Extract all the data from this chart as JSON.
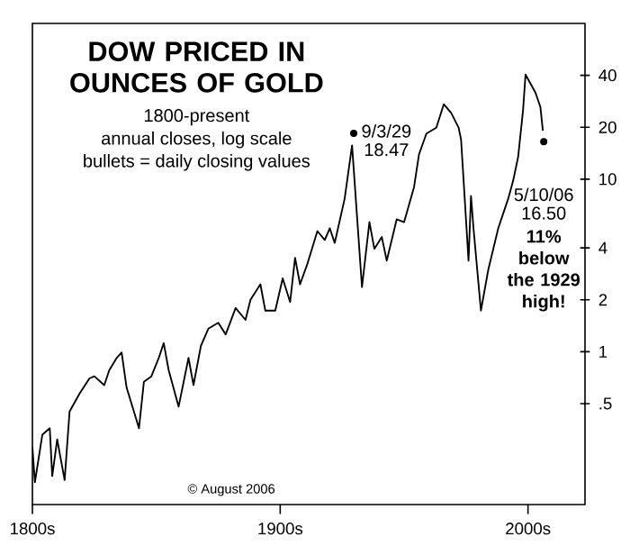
{
  "chart_data": {
    "type": "line",
    "title": "DOW PRICED IN OUNCES OF GOLD",
    "subtitle": "1800-present",
    "annotations": [
      "annual closes, log scale",
      "bullets = daily closing values",
      {
        "text": "9/3/29",
        "x": 1929.67,
        "y": 18.47
      },
      "18.47",
      {
        "text": "5/10/06",
        "x": 2006.36,
        "y": 16.5
      },
      "16.50",
      "11% below the 1929 high!",
      "© August 2006"
    ],
    "xlim": [
      1800,
      2023
    ],
    "xticks": [
      {
        "value": 1800,
        "label": "1800s"
      },
      {
        "value": 1900,
        "label": "1900s"
      },
      {
        "value": 2000,
        "label": "2000s"
      }
    ],
    "ylim": [
      0.13,
      80
    ],
    "yticks": [
      {
        "value": 0.5,
        "label": ".5"
      },
      1,
      2,
      4,
      10,
      20,
      40
    ],
    "log": true,
    "grid": false,
    "series": [
      {
        "color": "#000000",
        "marker": "none",
        "x": [
          1800,
          1801,
          1804,
          1807,
          1808,
          1810,
          1813,
          1815,
          1819,
          1823,
          1825,
          1829,
          1831,
          1834,
          1836,
          1838,
          1843,
          1845,
          1848,
          1851,
          1853,
          1855,
          1859,
          1863,
          1865,
          1868,
          1871,
          1875,
          1878,
          1882,
          1886,
          1888,
          1892,
          1894,
          1898,
          1901,
          1904,
          1906,
          1908,
          1911,
          1915,
          1918,
          1920,
          1922,
          1926,
          1929,
          1933,
          1936,
          1938,
          1941,
          1943,
          1947,
          1950,
          1954,
          1956,
          1959,
          1963,
          1966,
          1969,
          1972,
          1973,
          1976,
          1977,
          1978,
          1981,
          1984,
          1988,
          1992,
          1994,
          1996,
          1998,
          1999,
          2003,
          2005,
          2006
        ],
        "values": [
          0.28,
          0.175,
          0.33,
          0.36,
          0.19,
          0.31,
          0.18,
          0.45,
          0.57,
          0.7,
          0.72,
          0.64,
          0.78,
          0.92,
          0.99,
          0.62,
          0.36,
          0.67,
          0.72,
          0.92,
          1.12,
          0.78,
          0.48,
          0.92,
          0.64,
          1.08,
          1.36,
          1.47,
          1.26,
          1.79,
          1.53,
          2.0,
          2.46,
          1.73,
          1.73,
          2.66,
          1.94,
          3.5,
          2.46,
          3.24,
          5.0,
          4.44,
          5.2,
          4.27,
          7.7,
          15.7,
          2.37,
          5.64,
          3.95,
          4.62,
          3.37,
          5.85,
          5.64,
          9.0,
          13.9,
          18.4,
          19.9,
          27.2,
          24.2,
          19.9,
          16.9,
          3.37,
          8.0,
          5.2,
          1.73,
          3.0,
          5.2,
          7.7,
          9.8,
          13.4,
          25.1,
          40.4,
          31.8,
          26.2,
          19.1
        ]
      },
      {
        "type": "scatter",
        "color": "#000000",
        "marker": "circle",
        "x": [
          1929.67,
          2006.36
        ],
        "values": [
          18.47,
          16.5
        ]
      }
    ]
  }
}
